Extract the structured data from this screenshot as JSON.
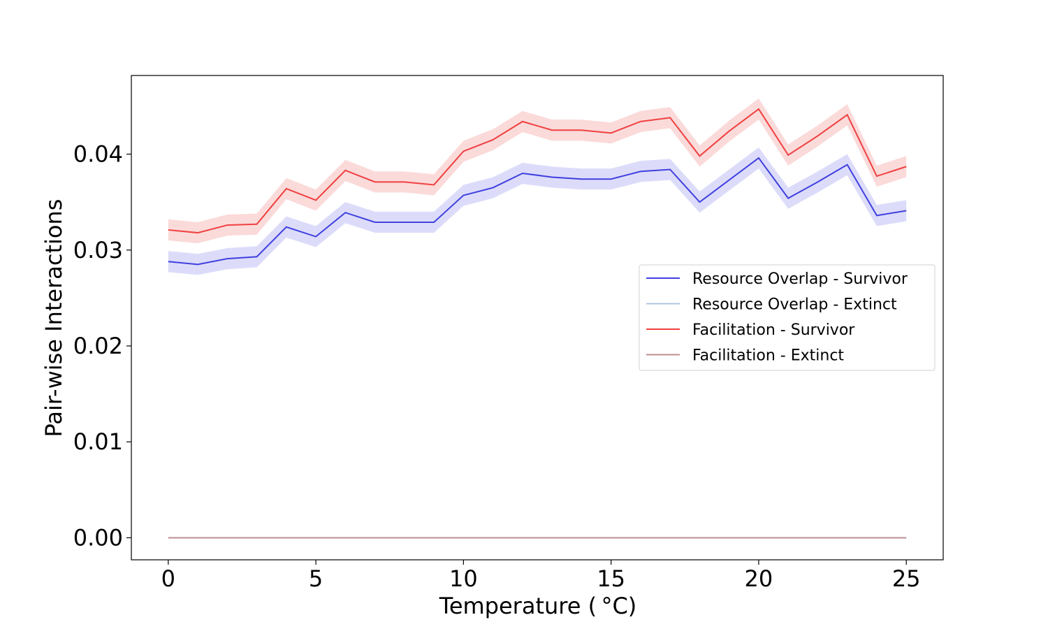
{
  "chart_data": {
    "type": "line",
    "title": "",
    "xlabel": "Temperature ($^\\circ$C)",
    "xlabel_display": "Temperature ( °C)",
    "ylabel": "Pair-wise Interactions",
    "xlim": [
      -1.25,
      26.25
    ],
    "ylim": [
      -0.0023,
      0.0482
    ],
    "x_ticks": [
      0,
      5,
      10,
      15,
      20,
      25
    ],
    "x_tick_labels": [
      "0",
      "5",
      "10",
      "15",
      "20",
      "25"
    ],
    "y_ticks": [
      0.0,
      0.01,
      0.02,
      0.03,
      0.04
    ],
    "y_tick_labels": [
      "0.00",
      "0.01",
      "0.02",
      "0.03",
      "0.04"
    ],
    "grid": false,
    "legend_position": "center-right",
    "x": [
      0,
      1,
      2,
      3,
      4,
      5,
      6,
      7,
      8,
      9,
      10,
      11,
      12,
      13,
      14,
      15,
      16,
      17,
      18,
      19,
      20,
      21,
      22,
      23,
      24,
      25
    ],
    "series": [
      {
        "name": "Resource Overlap - Survivor",
        "color": "#4040e0",
        "band_color": "#d8d8fa",
        "values": [
          0.0288,
          0.0285,
          0.0291,
          0.0293,
          0.0324,
          0.0314,
          0.0339,
          0.0329,
          0.0329,
          0.0329,
          0.0357,
          0.0365,
          0.038,
          0.0376,
          0.0374,
          0.0374,
          0.0382,
          0.0384,
          0.035,
          0.0373,
          0.0396,
          0.0354,
          0.0371,
          0.0389,
          0.0336,
          0.0341
        ],
        "band_halfwidth": 0.0011
      },
      {
        "name": "Resource Overlap - Extinct",
        "color": "#b0c4de",
        "values": [
          0,
          0,
          0,
          0,
          0,
          0,
          0,
          0,
          0,
          0,
          0,
          0,
          0,
          0,
          0,
          0,
          0,
          0,
          0,
          0,
          0,
          0,
          0,
          0,
          0,
          0
        ]
      },
      {
        "name": "Facilitation - Survivor",
        "color": "#f04040",
        "band_color": "#fbd6d6",
        "values": [
          0.0321,
          0.0318,
          0.0326,
          0.0327,
          0.0364,
          0.0352,
          0.0383,
          0.0371,
          0.0371,
          0.0368,
          0.0403,
          0.0415,
          0.0434,
          0.0425,
          0.0425,
          0.0422,
          0.0434,
          0.0438,
          0.0398,
          0.0424,
          0.0447,
          0.0399,
          0.0419,
          0.0441,
          0.0377,
          0.0387
        ],
        "band_halfwidth": 0.0011
      },
      {
        "name": "Facilitation - Extinct",
        "color": "#bc8f8f",
        "values": [
          0,
          0,
          0,
          0,
          0,
          0,
          0,
          0,
          0,
          0,
          0,
          0,
          0,
          0,
          0,
          0,
          0,
          0,
          0,
          0,
          0,
          0,
          0,
          0,
          0,
          0
        ]
      }
    ]
  }
}
